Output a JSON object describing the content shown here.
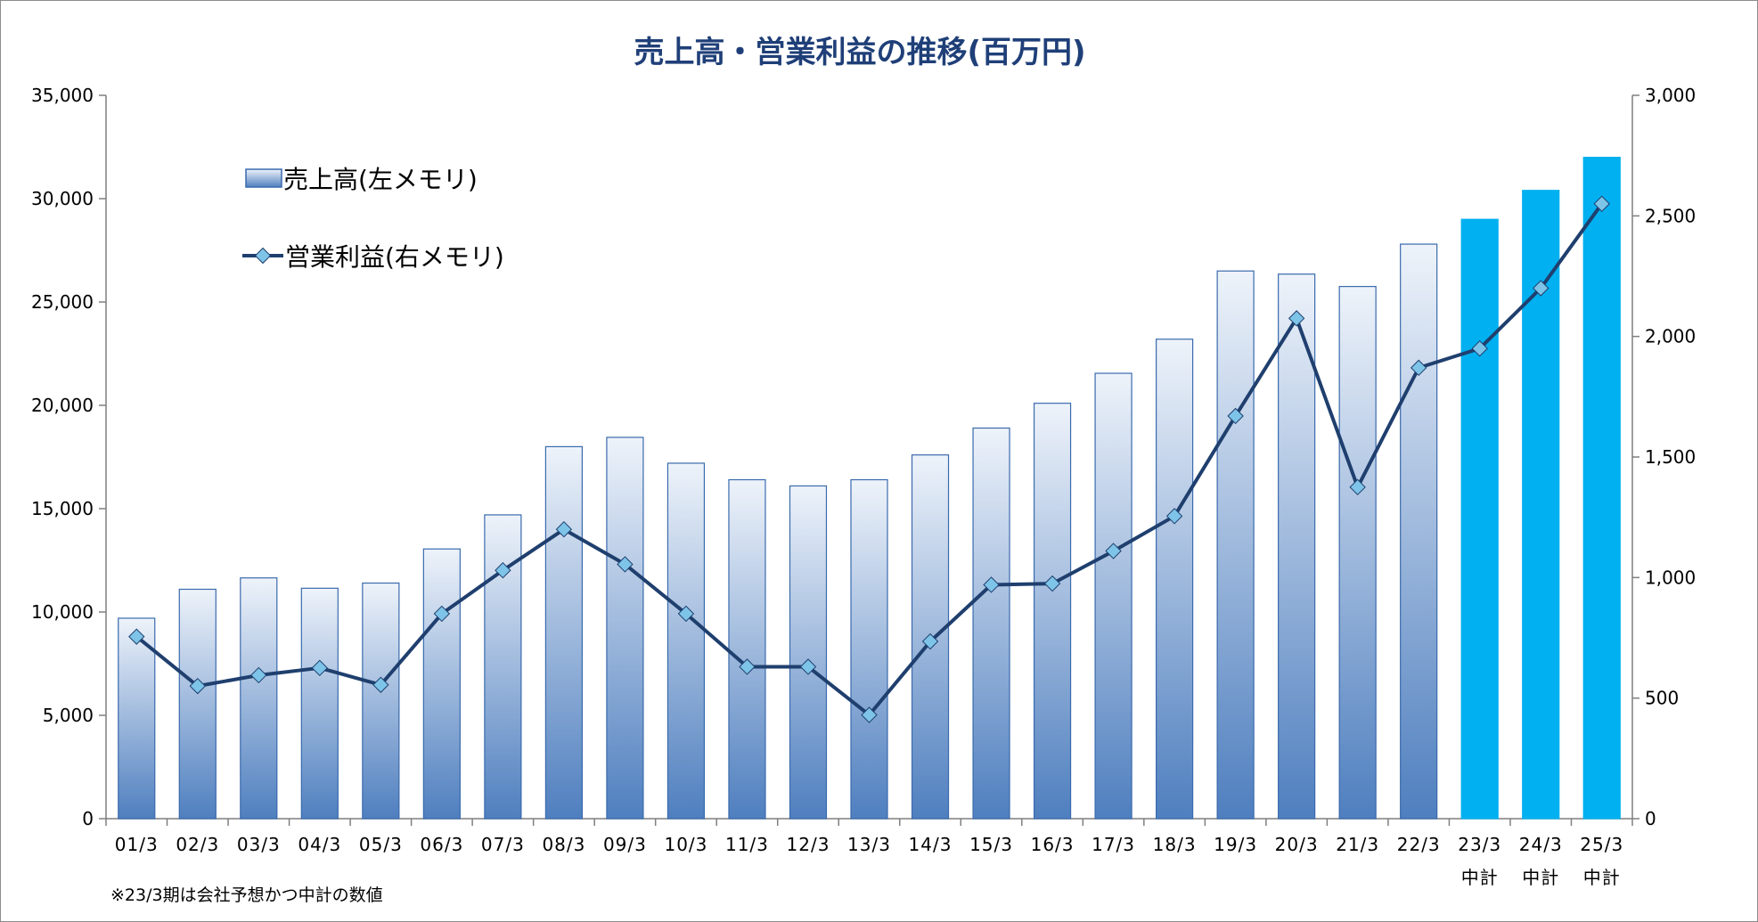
{
  "chart_data": {
    "type": "bar+line",
    "title": "売上高・営業利益の推移(百万円)",
    "categories": [
      "01/3",
      "02/3",
      "03/3",
      "04/3",
      "05/3",
      "06/3",
      "07/3",
      "08/3",
      "09/3",
      "10/3",
      "11/3",
      "12/3",
      "13/3",
      "14/3",
      "15/3",
      "16/3",
      "17/3",
      "18/3",
      "19/3",
      "20/3",
      "21/3",
      "22/3",
      "23/3",
      "24/3",
      "25/3"
    ],
    "category_sublabels": [
      "",
      "",
      "",
      "",
      "",
      "",
      "",
      "",
      "",
      "",
      "",
      "",
      "",
      "",
      "",
      "",
      "",
      "",
      "",
      "",
      "",
      "",
      "中計",
      "中計",
      "中計"
    ],
    "series": [
      {
        "name": "売上高(左メモリ)",
        "type": "bar",
        "axis": "left",
        "values": [
          9700,
          11100,
          11650,
          11150,
          11400,
          13050,
          14700,
          18000,
          18450,
          17200,
          16400,
          16100,
          16400,
          17600,
          18900,
          20100,
          21550,
          23200,
          26500,
          26350,
          25750,
          27800,
          29000,
          30400,
          32000
        ],
        "forecast_from_index": 22
      },
      {
        "name": "営業利益(右メモリ)",
        "type": "line",
        "axis": "right",
        "values": [
          755,
          550,
          595,
          625,
          555,
          850,
          1030,
          1200,
          1055,
          850,
          630,
          630,
          430,
          735,
          970,
          975,
          1110,
          1255,
          1670,
          2075,
          1375,
          1870,
          1950,
          2200,
          2550
        ]
      }
    ],
    "y_left": {
      "min": 0,
      "max": 35000,
      "ticks": [
        "0",
        "5,000",
        "10,000",
        "15,000",
        "20,000",
        "25,000",
        "30,000",
        "35,000"
      ]
    },
    "y_right": {
      "min": 0,
      "max": 3000,
      "ticks": [
        "0",
        "500",
        "1,000",
        "1,500",
        "2,000",
        "2,500",
        "3,000"
      ]
    },
    "grid": false,
    "legend_position": "top-left",
    "colors": {
      "bar_top": "#eef3fa",
      "bar_bottom": "#4f7fbf",
      "bar_border": "#3a6aad",
      "forecast_bar": "#00b0f0",
      "line": "#1f3f6e",
      "marker": "#7ec3e8",
      "title": "#1f3f78"
    }
  },
  "note": "※23/3期は会社予想かつ中計の数値"
}
